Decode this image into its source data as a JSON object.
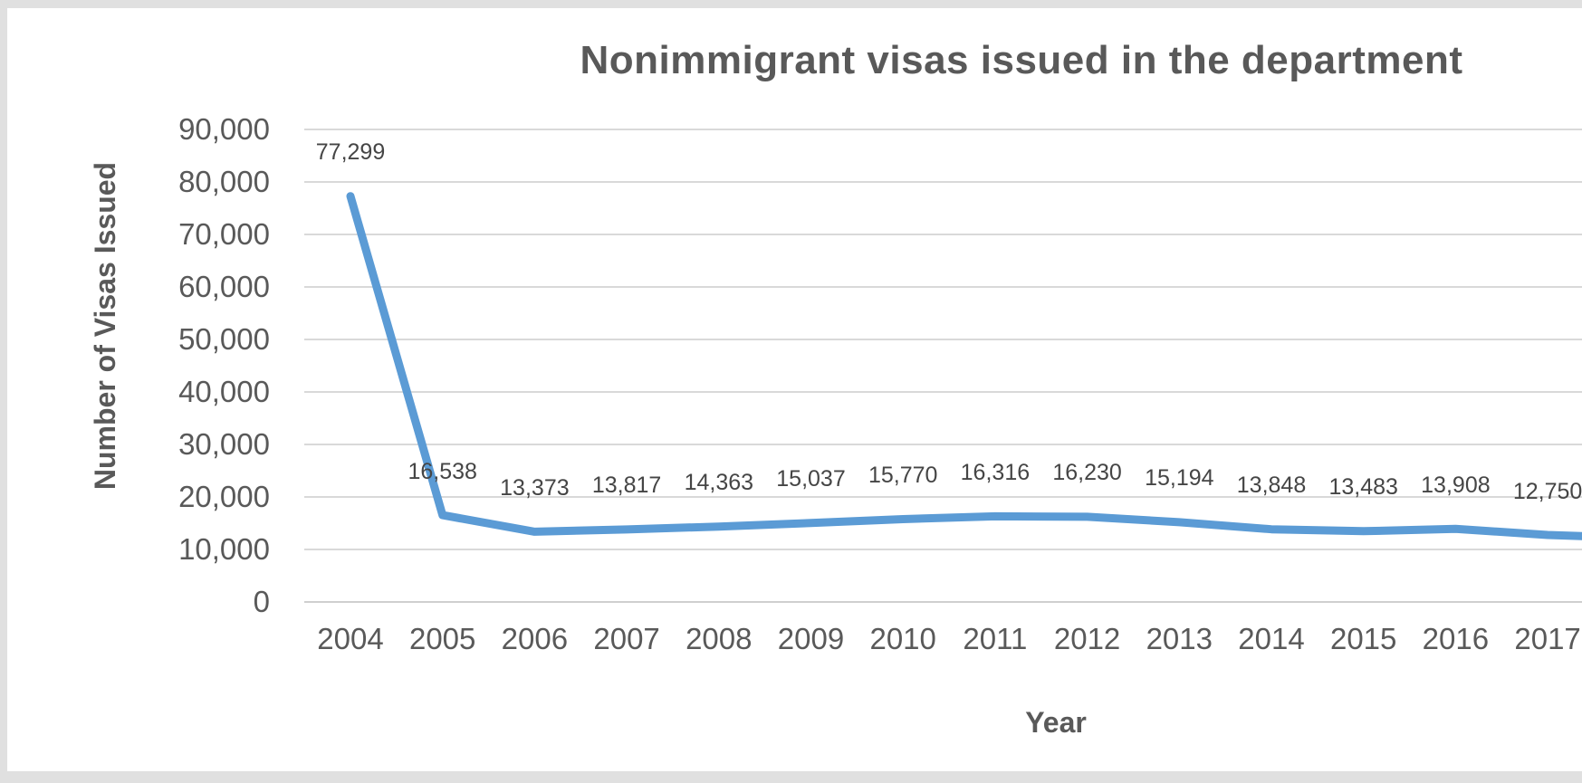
{
  "frame": {
    "outer_background": "#e0e0e0",
    "panel_background": "#ffffff"
  },
  "chart_data": {
    "type": "line",
    "title": "Nonimmigrant visas issued in the department",
    "xlabel": "Year",
    "ylabel": "Number of Visas Issued",
    "categories": [
      "2004",
      "2005",
      "2006",
      "2007",
      "2008",
      "2009",
      "2010",
      "2011",
      "2012",
      "2013",
      "2014",
      "2015",
      "2016",
      "2017"
    ],
    "values": [
      77299,
      16538,
      13373,
      13817,
      14363,
      15037,
      15770,
      16316,
      16230,
      15194,
      13848,
      13483,
      13908,
      12750
    ],
    "data_labels": [
      "77,299",
      "16,538",
      "13,373",
      "13,817",
      "14,363",
      "15,037",
      "15,770",
      "16,316",
      "16,230",
      "15,194",
      "13,848",
      "13,483",
      "13,908",
      "12,750"
    ],
    "y_ticks": [
      "0",
      "10,000",
      "20,000",
      "30,000",
      "40,000",
      "50,000",
      "60,000",
      "70,000",
      "80,000",
      "90,000"
    ],
    "ylim": [
      0,
      90000
    ],
    "grid": true,
    "legend": "none",
    "line_color": "#5b9bd5",
    "gridline_color": "#d9d9d9",
    "axis_line_color": "#cfcfcf",
    "text_color": "#595959",
    "data_label_color": "#454545"
  }
}
